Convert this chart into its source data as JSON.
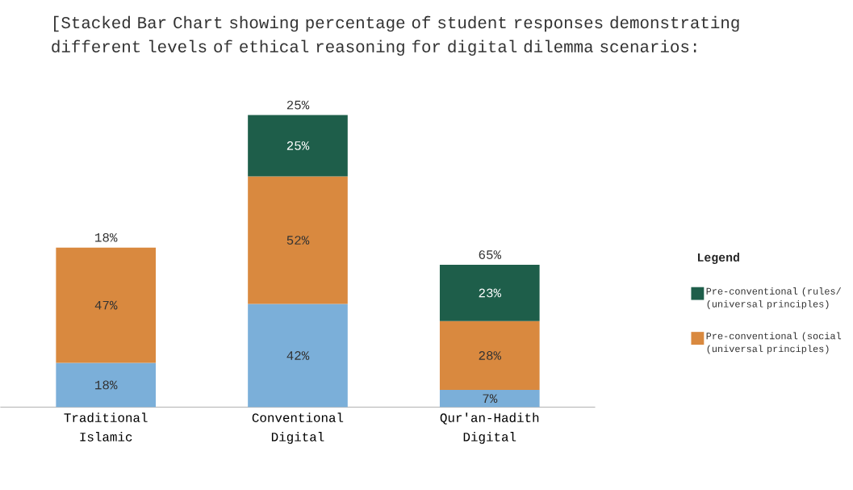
{
  "chart_data": {
    "type": "bar",
    "stacked": true,
    "title": "[Stacked Bar Chart showing percentage of student responses demonstrating different levels of ethical reasoning for digital dilemma scenarios:",
    "categories": [
      "Traditional Islamic",
      "Conventional Digital",
      "Qur'an-Hadith Digital"
    ],
    "series": [
      {
        "color": "#7bafd9",
        "values": [
          18,
          42,
          7
        ],
        "value_labels": [
          "18%",
          "42%",
          "7%"
        ]
      },
      {
        "name": "Pre-conventional (social (universal principles)",
        "color": "#d9893f",
        "values": [
          47,
          52,
          28
        ],
        "value_labels": [
          "47%",
          "52%",
          "28%"
        ]
      },
      {
        "name": "Pre-conventional (rules/ (universal principles)",
        "color": "#1e5e4a",
        "values": [
          null,
          25,
          23
        ],
        "value_labels": [
          null,
          "25%",
          "23%"
        ]
      }
    ],
    "annotations": [
      "18%",
      "25%",
      "65%"
    ],
    "legend_title": "Legend",
    "legend": "right"
  }
}
